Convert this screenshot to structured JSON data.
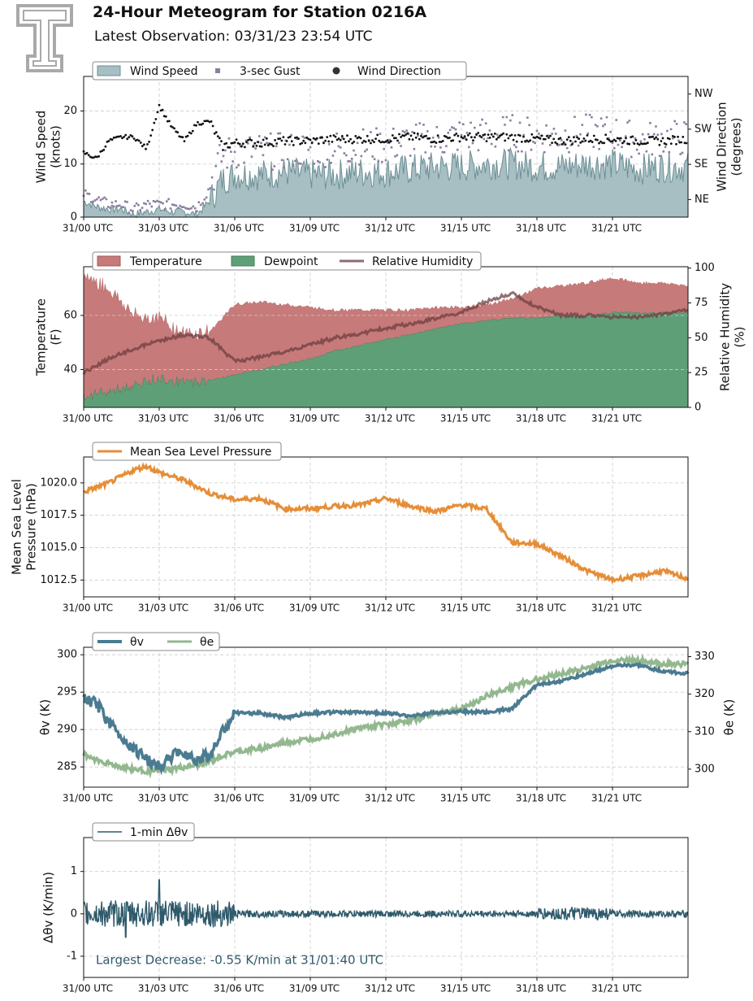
{
  "header": {
    "title": "24-Hour Meteogram for Station 0216A",
    "subtitle": "Latest Observation: 03/31/23 23:54 UTC"
  },
  "time_ticks": [
    "31/00 UTC",
    "31/03 UTC",
    "31/06 UTC",
    "31/09 UTC",
    "31/12 UTC",
    "31/15 UTC",
    "31/18 UTC",
    "31/21 UTC"
  ],
  "colors": {
    "wind_speed": "#a7bec3",
    "wind_speed_line": "#6b8f94",
    "gust": "#8a7fa0",
    "wind_dir": "#111111",
    "temperature": "#c77a7a",
    "dewpoint": "#5f9f78",
    "rh": "#6e3f3f",
    "mslp": "#e58e38",
    "theta_v": "#4b7b91",
    "theta_e": "#93b88f",
    "dtheta": "#2f5a6b",
    "annotation": "#2f5a6b",
    "logo": "#a9a9a9"
  },
  "chart_data": [
    {
      "type": "area",
      "id": "wind",
      "ylabel": "Wind Speed\n(knots)",
      "ylabel2": "Wind Direction\n(degrees)",
      "ylim": [
        0,
        26.5
      ],
      "yticks": [
        0,
        10,
        20
      ],
      "y2_tick_labels": [
        "NE",
        "SE",
        "SW",
        "NW"
      ],
      "y2_tick_values": [
        45,
        135,
        225,
        315
      ],
      "legend": [
        "Wind Speed",
        "3-sec Gust",
        "Wind Direction"
      ],
      "x_hours": [
        0,
        0.5,
        1,
        1.5,
        2,
        2.5,
        3,
        3.5,
        4,
        4.5,
        5,
        5.5,
        6,
        7,
        8,
        9,
        10,
        11,
        12,
        13,
        14,
        15,
        16,
        17,
        18,
        19,
        20,
        21,
        22,
        23,
        24
      ],
      "series": [
        {
          "name": "Wind Speed",
          "values": [
            3,
            2,
            1.5,
            1.5,
            0.5,
            1,
            1.5,
            1,
            1,
            0.5,
            3,
            7,
            8,
            8,
            8.5,
            8,
            8,
            8.5,
            8.5,
            9,
            9.5,
            9.5,
            10,
            10,
            9.5,
            9.5,
            10,
            10,
            9,
            9.5,
            9.5
          ]
        },
        {
          "name": "3-sec Gust",
          "values": [
            4,
            3,
            2,
            2,
            1,
            2,
            2,
            2,
            2,
            1.5,
            5,
            10,
            11,
            11,
            11,
            11.5,
            11.5,
            12,
            12,
            13,
            13,
            14,
            14,
            14.5,
            14,
            14,
            14.5,
            14.5,
            13,
            13.5,
            13.5
          ]
        },
        {
          "name": "Wind Direction",
          "values": [
            165,
            150,
            195,
            205,
            205,
            175,
            285,
            230,
            195,
            240,
            245,
            180,
            190,
            190,
            195,
            195,
            200,
            200,
            200,
            205,
            200,
            205,
            205,
            205,
            200,
            195,
            200,
            200,
            195,
            195,
            200
          ]
        }
      ]
    },
    {
      "type": "area",
      "id": "temp",
      "ylabel": "Temperature\n(F)",
      "ylabel2": "Relative Humidity\n(%)",
      "ylim": [
        26,
        78
      ],
      "yticks": [
        40,
        60
      ],
      "y2lim": [
        0,
        101
      ],
      "y2ticks": [
        0,
        25,
        50,
        75,
        100
      ],
      "legend": [
        "Temperature",
        "Dewpoint",
        "Relative Humidity"
      ],
      "x_hours": [
        0,
        1,
        2,
        3,
        4,
        5,
        6,
        7,
        8,
        9,
        10,
        11,
        12,
        13,
        14,
        15,
        16,
        17,
        18,
        19,
        20,
        21,
        22,
        23,
        24
      ],
      "series": [
        {
          "name": "Temperature",
          "values": [
            75,
            70,
            60,
            59,
            53,
            54,
            64,
            65,
            64,
            63,
            62,
            62,
            62,
            62,
            63,
            63,
            64,
            66,
            70,
            71,
            72,
            74,
            72,
            72,
            71
          ]
        },
        {
          "name": "Dewpoint",
          "values": [
            30,
            32,
            34,
            37,
            35,
            36,
            38,
            40,
            42,
            44,
            47,
            49,
            51,
            53,
            55,
            57,
            58,
            59,
            59,
            60,
            60,
            61,
            61,
            61,
            61
          ]
        },
        {
          "name": "Relative Humidity",
          "values": [
            25,
            35,
            42,
            48,
            52,
            50,
            33,
            36,
            40,
            45,
            50,
            53,
            57,
            60,
            64,
            68,
            76,
            82,
            72,
            66,
            66,
            65,
            65,
            67,
            70
          ]
        }
      ]
    },
    {
      "type": "line",
      "id": "mslp",
      "ylabel": "Mean Sea Level\nPressure (hPa)",
      "ylim": [
        1011.2,
        1022.0
      ],
      "yticks": [
        1012.5,
        1015.0,
        1017.5,
        1020.0
      ],
      "legend": [
        "Mean Sea Level Pressure"
      ],
      "x_hours": [
        0,
        1,
        2,
        2.5,
        3,
        4,
        5,
        6,
        7,
        8,
        9,
        10,
        11,
        12,
        13,
        14,
        15,
        16,
        17,
        18,
        19,
        20,
        21,
        22,
        23,
        24
      ],
      "series": [
        {
          "name": "Mean Sea Level Pressure",
          "values": [
            1019.3,
            1020.0,
            1021.0,
            1021.3,
            1020.8,
            1020.2,
            1019.2,
            1018.7,
            1018.8,
            1018.0,
            1018.0,
            1018.2,
            1018.3,
            1018.8,
            1018.2,
            1017.8,
            1018.3,
            1018.0,
            1015.4,
            1015.3,
            1014.3,
            1013.2,
            1012.5,
            1012.8,
            1013.2,
            1012.6
          ]
        }
      ]
    },
    {
      "type": "line",
      "id": "theta",
      "ylabel": "θv (K)",
      "ylabel2": "θe (K)",
      "ylim": [
        282.3,
        301
      ],
      "yticks": [
        285,
        290,
        295,
        300
      ],
      "y2lim": [
        295.2,
        332.5
      ],
      "y2ticks": [
        300,
        310,
        320,
        330
      ],
      "legend": [
        "θv",
        "θe"
      ],
      "x_hours": [
        0,
        0.5,
        1,
        1.5,
        2,
        2.5,
        3,
        3.5,
        4,
        4.5,
        5,
        5.5,
        6,
        7,
        8,
        9,
        10,
        11,
        12,
        13,
        14,
        15,
        16,
        17,
        18,
        19,
        20,
        21,
        22,
        23,
        24
      ],
      "series": [
        {
          "name": "θv",
          "values": [
            294,
            293.5,
            291,
            289,
            287.5,
            286,
            285,
            286.5,
            287,
            286,
            286.5,
            289.5,
            292.2,
            292.2,
            291.6,
            292.2,
            292.3,
            292.3,
            292.2,
            291.8,
            292.3,
            292.4,
            292.3,
            292.8,
            296,
            296.5,
            297.5,
            298.5,
            298.6,
            297.8,
            297.5
          ]
        },
        {
          "name": "θe",
          "values": [
            304,
            302.5,
            301.5,
            300.5,
            300,
            299.5,
            299.5,
            300,
            300.5,
            301,
            302,
            303.5,
            304.5,
            305.5,
            307,
            308,
            309.5,
            311,
            312,
            313,
            315,
            316,
            319.5,
            322,
            324,
            325.5,
            327,
            329,
            329,
            328,
            328
          ]
        }
      ]
    },
    {
      "type": "line",
      "id": "dtheta",
      "ylabel": "Δθv (K/min)",
      "ylim": [
        -1.5,
        1.8
      ],
      "yticks": [
        -1,
        0,
        1
      ],
      "legend": [
        "1-min Δθv"
      ],
      "annotation": "Largest Decrease: -0.55 K/min at 31/01:40 UTC",
      "series": [
        {
          "name": "1-min Δθv"
        }
      ]
    }
  ]
}
